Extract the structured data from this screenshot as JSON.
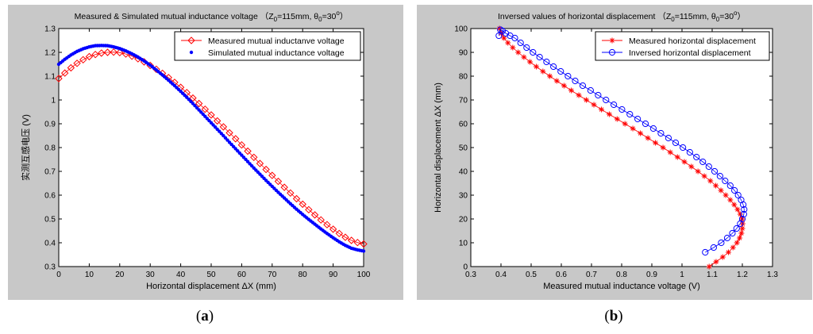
{
  "chart_data": [
    {
      "type": "line",
      "title": "Measured & Simulated mutual inductance voltage （Z₀=115mm, θ₀=30°）",
      "xlabel": "Horizontal displacement ΔX (mm)",
      "ylabel": "实测互感电压 (V)",
      "xlim": [
        0,
        100
      ],
      "ylim": [
        0.3,
        1.3
      ],
      "xticks": [
        0,
        10,
        20,
        30,
        40,
        50,
        60,
        70,
        80,
        90,
        100
      ],
      "yticks": [
        0.3,
        0.4,
        0.5,
        0.6,
        0.7,
        0.8,
        0.9,
        1,
        1.1,
        1.2,
        1.3
      ],
      "legend_position": "top-right",
      "series": [
        {
          "name": "Measured mutual inductanve voltage",
          "color": "#ff0000",
          "marker": "diamond",
          "x": [
            0,
            2,
            4,
            6,
            8,
            10,
            12,
            14,
            16,
            18,
            20,
            22,
            24,
            26,
            28,
            30,
            32,
            34,
            36,
            38,
            40,
            42,
            44,
            46,
            48,
            50,
            52,
            54,
            56,
            58,
            60,
            62,
            64,
            66,
            68,
            70,
            72,
            74,
            76,
            78,
            80,
            82,
            84,
            86,
            88,
            90,
            92,
            94,
            96,
            98,
            100
          ],
          "y": [
            1.09,
            1.113,
            1.135,
            1.154,
            1.169,
            1.182,
            1.191,
            1.197,
            1.2,
            1.201,
            1.199,
            1.193,
            1.184,
            1.173,
            1.16,
            1.145,
            1.129,
            1.112,
            1.094,
            1.074,
            1.053,
            1.031,
            1.008,
            0.985,
            0.961,
            0.937,
            0.912,
            0.887,
            0.862,
            0.837,
            0.811,
            0.785,
            0.759,
            0.733,
            0.708,
            0.683,
            0.658,
            0.633,
            0.609,
            0.585,
            0.562,
            0.539,
            0.517,
            0.496,
            0.476,
            0.457,
            0.439,
            0.423,
            0.41,
            0.401,
            0.395
          ]
        },
        {
          "name": "Simulated mutual inductance voltage",
          "color": "#0000ff",
          "marker": "point",
          "x": [
            0,
            2,
            4,
            6,
            8,
            10,
            12,
            14,
            16,
            18,
            20,
            22,
            24,
            26,
            28,
            30,
            32,
            34,
            36,
            38,
            40,
            42,
            44,
            46,
            48,
            50,
            52,
            54,
            56,
            58,
            60,
            62,
            64,
            66,
            68,
            70,
            72,
            74,
            76,
            78,
            80,
            82,
            84,
            86,
            88,
            90,
            92,
            94,
            96,
            98,
            100
          ],
          "y": [
            1.15,
            1.171,
            1.189,
            1.204,
            1.215,
            1.223,
            1.228,
            1.229,
            1.228,
            1.223,
            1.216,
            1.206,
            1.194,
            1.18,
            1.164,
            1.146,
            1.126,
            1.105,
            1.083,
            1.06,
            1.036,
            1.011,
            0.985,
            0.958,
            0.931,
            0.904,
            0.877,
            0.85,
            0.822,
            0.795,
            0.768,
            0.741,
            0.714,
            0.688,
            0.662,
            0.637,
            0.612,
            0.588,
            0.564,
            0.541,
            0.519,
            0.498,
            0.478,
            0.458,
            0.439,
            0.421,
            0.404,
            0.389,
            0.377,
            0.37,
            0.365
          ]
        }
      ]
    },
    {
      "type": "line",
      "title": "Inversed values of horizontal displacement （Z₀=115mm,θ₀=30°）",
      "xlabel": "Measured mutual inductance voltage (V)",
      "ylabel": "Horizontal displacement ΔX (mm)",
      "xlim": [
        0.3,
        1.3
      ],
      "ylim": [
        0,
        100
      ],
      "xticks": [
        0.3,
        0.4,
        0.5,
        0.6,
        0.7,
        0.8,
        0.9,
        1,
        1.1,
        1.2,
        1.3
      ],
      "yticks": [
        0,
        10,
        20,
        30,
        40,
        50,
        60,
        70,
        80,
        90,
        100
      ],
      "legend_position": "top-right",
      "series": [
        {
          "name": "Measured horizontal displacement",
          "color": "#ff0000",
          "marker": "star",
          "x": [
            1.09,
            1.113,
            1.135,
            1.154,
            1.169,
            1.182,
            1.191,
            1.197,
            1.2,
            1.201,
            1.199,
            1.193,
            1.184,
            1.173,
            1.16,
            1.145,
            1.129,
            1.112,
            1.094,
            1.074,
            1.053,
            1.031,
            1.008,
            0.985,
            0.961,
            0.937,
            0.912,
            0.887,
            0.862,
            0.837,
            0.811,
            0.785,
            0.759,
            0.733,
            0.708,
            0.683,
            0.658,
            0.633,
            0.609,
            0.585,
            0.562,
            0.539,
            0.517,
            0.496,
            0.476,
            0.457,
            0.439,
            0.423,
            0.41,
            0.401,
            0.395
          ],
          "y": [
            0,
            2,
            4,
            6,
            8,
            10,
            12,
            14,
            16,
            18,
            20,
            22,
            24,
            26,
            28,
            30,
            32,
            34,
            36,
            38,
            40,
            42,
            44,
            46,
            48,
            50,
            52,
            54,
            56,
            58,
            60,
            62,
            64,
            66,
            68,
            70,
            72,
            74,
            76,
            78,
            80,
            82,
            84,
            86,
            88,
            90,
            92,
            94,
            96,
            98,
            100
          ]
        },
        {
          "name": "Inversed horizontal displacement",
          "color": "#0000ff",
          "marker": "circle",
          "x": [
            1.077,
            1.105,
            1.13,
            1.15,
            1.167,
            1.181,
            1.193,
            1.2,
            1.205,
            1.206,
            1.203,
            1.196,
            1.186,
            1.174,
            1.16,
            1.143,
            1.126,
            1.108,
            1.089,
            1.069,
            1.048,
            1.026,
            1.003,
            0.979,
            0.955,
            0.93,
            0.905,
            0.879,
            0.853,
            0.827,
            0.801,
            0.774,
            0.748,
            0.722,
            0.697,
            0.671,
            0.646,
            0.622,
            0.598,
            0.574,
            0.551,
            0.528,
            0.506,
            0.485,
            0.465,
            0.446,
            0.43,
            0.416,
            0.405,
            0.398,
            0.393
          ],
          "y": [
            6,
            8,
            10,
            12,
            14,
            16,
            18,
            20,
            22,
            24,
            26,
            28,
            30,
            32,
            34,
            36,
            38,
            40,
            42,
            44,
            46,
            48,
            50,
            52,
            54,
            56,
            58,
            60,
            62,
            64,
            66,
            68,
            70,
            72,
            74,
            76,
            78,
            80,
            82,
            84,
            86,
            88,
            90,
            92,
            94,
            96,
            97,
            98,
            99,
            99.5,
            97
          ]
        }
      ]
    }
  ],
  "captions": {
    "a": {
      "open": "(",
      "letter": "a",
      "close": ")"
    },
    "b": {
      "open": "(",
      "letter": "b",
      "close": ")"
    }
  }
}
